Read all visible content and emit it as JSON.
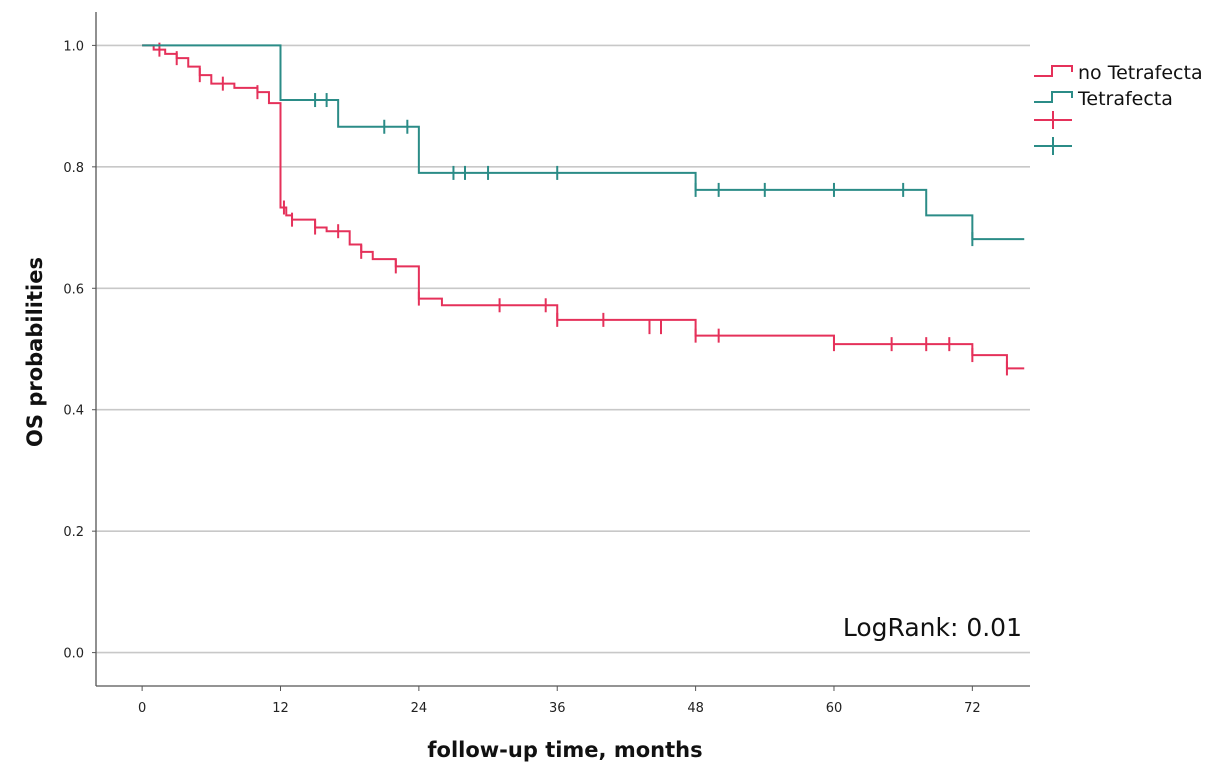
{
  "chart_data": {
    "type": "line",
    "title": "",
    "xlabel": "follow-up time, months",
    "ylabel": "OS probabilities",
    "xlim": [
      -4,
      77
    ],
    "ylim": [
      -0.055,
      1.055
    ],
    "x_ticks": [
      0,
      12,
      24,
      36,
      48,
      60,
      72
    ],
    "x_tick_labels": [
      "0",
      "12",
      "24",
      "36",
      "48",
      "60",
      "72"
    ],
    "y_ticks": [
      0.0,
      0.2,
      0.4,
      0.6,
      0.8,
      1.0
    ],
    "y_tick_labels": [
      "0.0",
      "0.2",
      "0.4",
      "0.6",
      "0.8",
      "1.0"
    ],
    "grid": "horizontal",
    "legend_position": "top-right",
    "annotation": "LogRank: 0.01",
    "series": [
      {
        "name": "no Tetrafecta",
        "color": "#e5315a",
        "step_x": [
          0,
          1,
          2,
          3,
          4,
          5,
          6,
          8,
          10,
          11,
          12,
          12.5,
          13,
          15,
          16,
          18,
          19,
          20,
          22,
          24,
          26,
          36,
          48,
          60,
          72,
          75,
          76.5
        ],
        "step_y": [
          1.0,
          0.993,
          0.986,
          0.979,
          0.965,
          0.951,
          0.937,
          0.93,
          0.923,
          0.905,
          0.733,
          0.72,
          0.713,
          0.7,
          0.694,
          0.672,
          0.66,
          0.648,
          0.636,
          0.583,
          0.572,
          0.548,
          0.522,
          0.508,
          0.49,
          0.468,
          0.468
        ],
        "censor_x": [
          1.5,
          3,
          5,
          7,
          10,
          12.3,
          13,
          15,
          17,
          19,
          22,
          24,
          31,
          35,
          36,
          40,
          44,
          45,
          48,
          50,
          60,
          65,
          68,
          70,
          72,
          75
        ],
        "censor_y": [
          0.993,
          0.979,
          0.951,
          0.937,
          0.923,
          0.733,
          0.713,
          0.7,
          0.694,
          0.66,
          0.636,
          0.583,
          0.572,
          0.572,
          0.548,
          0.548,
          0.536,
          0.536,
          0.522,
          0.522,
          0.508,
          0.508,
          0.508,
          0.508,
          0.49,
          0.468
        ]
      },
      {
        "name": "Tetrafecta",
        "color": "#2b8c87",
        "step_x": [
          0,
          12,
          17,
          24,
          48,
          68,
          72,
          76.5
        ],
        "step_y": [
          1.0,
          0.91,
          0.866,
          0.79,
          0.762,
          0.72,
          0.681,
          0.681
        ],
        "censor_x": [
          15,
          16,
          21,
          23,
          27,
          28,
          30,
          36,
          48,
          50,
          54,
          60,
          66,
          72
        ],
        "censor_y": [
          0.91,
          0.91,
          0.866,
          0.866,
          0.79,
          0.79,
          0.79,
          0.79,
          0.762,
          0.762,
          0.762,
          0.762,
          0.762,
          0.681
        ]
      }
    ]
  }
}
